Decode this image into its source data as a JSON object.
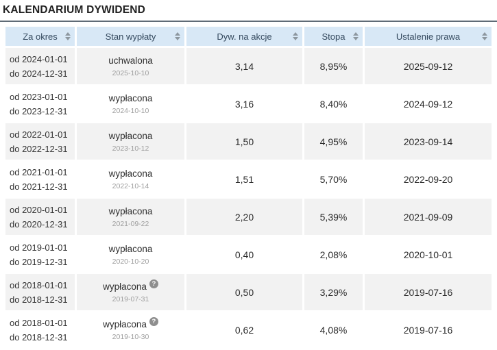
{
  "page": {
    "title": "KALENDARIUM DYWIDEND"
  },
  "colors": {
    "header_bg": "#d8e8f6",
    "header_text": "#34495e",
    "row_alt_bg": "#f2f2f2",
    "row_bg": "#ffffff",
    "muted_date": "#9e9e9e",
    "title_rule": "#5f6b76",
    "help_icon_bg": "#8e8e8e"
  },
  "icons": {
    "sort": "sort-arrows-up-down",
    "help": "?"
  },
  "table": {
    "columns": [
      {
        "label": "Za okres"
      },
      {
        "label": "Stan wypłaty"
      },
      {
        "label": "Dyw. na akcje"
      },
      {
        "label": "Stopa"
      },
      {
        "label": "Ustalenie prawa"
      }
    ],
    "rows": [
      {
        "period_from": "od 2024-01-01",
        "period_to": "do 2024-12-31",
        "status": "uchwalona",
        "status_date": "2025-10-10",
        "dividend": "3,14",
        "yield": "8,95%",
        "rights_date": "2025-09-12",
        "has_help": false
      },
      {
        "period_from": "od 2023-01-01",
        "period_to": "do 2023-12-31",
        "status": "wypłacona",
        "status_date": "2024-10-10",
        "dividend": "3,16",
        "yield": "8,40%",
        "rights_date": "2024-09-12",
        "has_help": false
      },
      {
        "period_from": "od 2022-01-01",
        "period_to": "do 2022-12-31",
        "status": "wypłacona",
        "status_date": "2023-10-12",
        "dividend": "1,50",
        "yield": "4,95%",
        "rights_date": "2023-09-14",
        "has_help": false
      },
      {
        "period_from": "od 2021-01-01",
        "period_to": "do 2021-12-31",
        "status": "wypłacona",
        "status_date": "2022-10-14",
        "dividend": "1,51",
        "yield": "5,70%",
        "rights_date": "2022-09-20",
        "has_help": false
      },
      {
        "period_from": "od 2020-01-01",
        "period_to": "do 2020-12-31",
        "status": "wypłacona",
        "status_date": "2021-09-22",
        "dividend": "2,20",
        "yield": "5,39%",
        "rights_date": "2021-09-09",
        "has_help": false
      },
      {
        "period_from": "od 2019-01-01",
        "period_to": "do 2019-12-31",
        "status": "wypłacona",
        "status_date": "2020-10-20",
        "dividend": "0,40",
        "yield": "2,08%",
        "rights_date": "2020-10-01",
        "has_help": false
      },
      {
        "period_from": "od 2018-01-01",
        "period_to": "do 2018-12-31",
        "status": "wypłacona",
        "status_date": "2019-07-31",
        "dividend": "0,50",
        "yield": "3,29%",
        "rights_date": "2019-07-16",
        "has_help": true
      },
      {
        "period_from": "od 2018-01-01",
        "period_to": "do 2018-12-31",
        "status": "wypłacona",
        "status_date": "2019-10-30",
        "dividend": "0,62",
        "yield": "4,08%",
        "rights_date": "2019-07-16",
        "has_help": true
      }
    ]
  }
}
